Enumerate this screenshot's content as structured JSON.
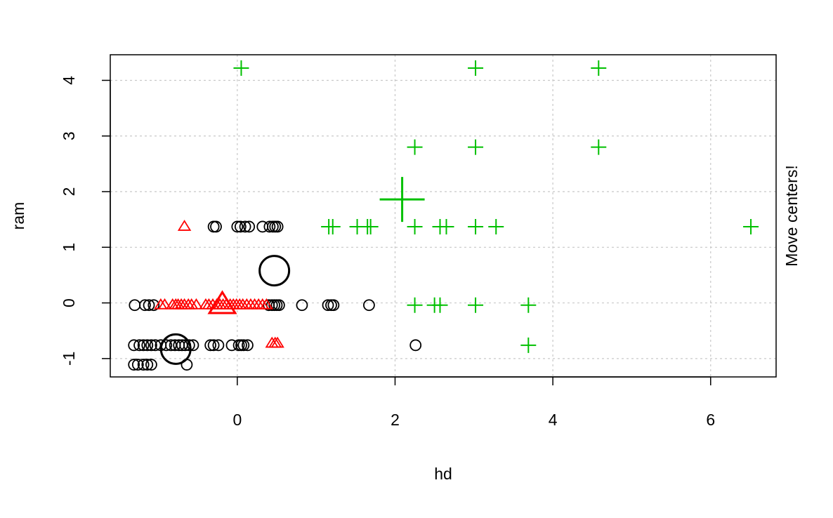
{
  "chart_data": {
    "type": "scatter",
    "title": "",
    "xlabel": "hd",
    "ylabel": "ram",
    "side_text": "Move centers!",
    "xlim": [
      -1.61,
      6.83
    ],
    "ylim": [
      -1.33,
      4.46
    ],
    "x_ticks": [
      0,
      2,
      4,
      6
    ],
    "y_ticks": [
      -1,
      0,
      1,
      2,
      3,
      4
    ],
    "x_tick_labels": [
      "0",
      "2",
      "4",
      "6"
    ],
    "y_tick_labels": [
      "-1",
      "0",
      "1",
      "2",
      "3",
      "4"
    ],
    "grid": true,
    "series": [
      {
        "marker": "circle",
        "color": "#000000",
        "points": [
          [
            -1.3,
            -0.04
          ],
          [
            -1.17,
            -0.04
          ],
          [
            -1.12,
            -0.04
          ],
          [
            -1.06,
            -0.04
          ],
          [
            -0.3,
            1.37
          ],
          [
            -0.27,
            1.37
          ],
          [
            0.0,
            1.37
          ],
          [
            0.04,
            1.37
          ],
          [
            0.1,
            1.37
          ],
          [
            0.15,
            1.37
          ],
          [
            0.32,
            1.37
          ],
          [
            0.41,
            1.37
          ],
          [
            0.45,
            1.37
          ],
          [
            0.48,
            1.37
          ],
          [
            0.51,
            1.37
          ],
          [
            0.4,
            -0.04
          ],
          [
            0.44,
            -0.04
          ],
          [
            0.47,
            -0.04
          ],
          [
            0.5,
            -0.04
          ],
          [
            0.53,
            -0.04
          ],
          [
            0.82,
            -0.04
          ],
          [
            1.15,
            -0.04
          ],
          [
            1.19,
            -0.04
          ],
          [
            1.22,
            -0.04
          ],
          [
            1.67,
            -0.04
          ],
          [
            -1.31,
            -0.76
          ],
          [
            -1.24,
            -0.76
          ],
          [
            -1.19,
            -0.76
          ],
          [
            -1.14,
            -0.76
          ],
          [
            -1.09,
            -0.76
          ],
          [
            -1.04,
            -0.76
          ],
          [
            -0.97,
            -0.76
          ],
          [
            -0.9,
            -0.76
          ],
          [
            -0.84,
            -0.76
          ],
          [
            -0.79,
            -0.76
          ],
          [
            -0.74,
            -0.76
          ],
          [
            -0.7,
            -0.76
          ],
          [
            -0.66,
            -0.76
          ],
          [
            -0.61,
            -0.76
          ],
          [
            -0.56,
            -0.76
          ],
          [
            -0.34,
            -0.76
          ],
          [
            -0.3,
            -0.76
          ],
          [
            -0.24,
            -0.76
          ],
          [
            -0.07,
            -0.76
          ],
          [
            0.02,
            -0.76
          ],
          [
            0.05,
            -0.76
          ],
          [
            0.08,
            -0.76
          ],
          [
            0.13,
            -0.76
          ],
          [
            2.26,
            -0.76
          ],
          [
            -1.31,
            -1.11
          ],
          [
            -1.26,
            -1.11
          ],
          [
            -1.19,
            -1.11
          ],
          [
            -1.14,
            -1.11
          ],
          [
            -1.09,
            -1.11
          ],
          [
            -0.64,
            -1.11
          ]
        ]
      },
      {
        "marker": "triangle",
        "color": "#ff0000",
        "points": [
          [
            -0.67,
            1.37
          ],
          [
            -0.97,
            -0.04
          ],
          [
            -0.92,
            -0.04
          ],
          [
            -0.82,
            -0.04
          ],
          [
            -0.78,
            -0.04
          ],
          [
            -0.75,
            -0.04
          ],
          [
            -0.71,
            -0.04
          ],
          [
            -0.67,
            -0.04
          ],
          [
            -0.62,
            -0.04
          ],
          [
            -0.58,
            -0.04
          ],
          [
            -0.52,
            -0.04
          ],
          [
            -0.4,
            -0.04
          ],
          [
            -0.36,
            -0.04
          ],
          [
            -0.31,
            -0.04
          ],
          [
            -0.26,
            -0.04
          ],
          [
            -0.22,
            -0.04
          ],
          [
            -0.18,
            -0.04
          ],
          [
            -0.14,
            -0.04
          ],
          [
            -0.09,
            -0.04
          ],
          [
            -0.05,
            -0.04
          ],
          [
            -0.01,
            -0.04
          ],
          [
            0.03,
            -0.04
          ],
          [
            0.07,
            -0.04
          ],
          [
            0.12,
            -0.04
          ],
          [
            0.17,
            -0.04
          ],
          [
            0.22,
            -0.04
          ],
          [
            0.27,
            -0.04
          ],
          [
            0.32,
            -0.04
          ],
          [
            0.37,
            -0.04
          ],
          [
            0.44,
            -0.73
          ],
          [
            0.48,
            -0.73
          ],
          [
            0.51,
            -0.73
          ]
        ]
      },
      {
        "marker": "plus",
        "color": "#00c000",
        "points": [
          [
            0.05,
            4.22
          ],
          [
            3.02,
            4.22
          ],
          [
            4.58,
            4.22
          ],
          [
            2.25,
            2.8
          ],
          [
            3.02,
            2.8
          ],
          [
            4.58,
            2.8
          ],
          [
            1.16,
            1.37
          ],
          [
            1.21,
            1.37
          ],
          [
            1.52,
            1.37
          ],
          [
            1.65,
            1.37
          ],
          [
            1.69,
            1.37
          ],
          [
            2.25,
            1.37
          ],
          [
            2.57,
            1.37
          ],
          [
            2.65,
            1.37
          ],
          [
            3.02,
            1.37
          ],
          [
            3.28,
            1.37
          ],
          [
            6.51,
            1.37
          ],
          [
            2.25,
            -0.04
          ],
          [
            2.5,
            -0.04
          ],
          [
            2.57,
            -0.04
          ],
          [
            3.02,
            -0.04
          ],
          [
            3.69,
            -0.04
          ],
          [
            3.69,
            -0.76
          ]
        ]
      }
    ],
    "centers": [
      {
        "marker": "circle",
        "color": "#000000",
        "x": 0.47,
        "y": 0.58
      },
      {
        "marker": "circle",
        "color": "#000000",
        "x": -0.78,
        "y": -0.83
      },
      {
        "marker": "triangle",
        "color": "#ff0000",
        "x": -0.19,
        "y": -0.04
      },
      {
        "marker": "plus",
        "color": "#00c000",
        "x": 2.09,
        "y": 1.86
      }
    ]
  }
}
